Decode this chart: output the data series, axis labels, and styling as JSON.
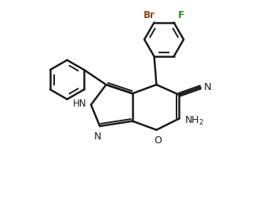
{
  "bg_color": "#ffffff",
  "bond_color": "#1a1a1a",
  "br_color": "#8B4513",
  "f_color": "#228B22",
  "lw": 1.8,
  "lw2": 1.4,
  "fig_width": 3.25,
  "fig_height": 2.58,
  "dpi": 100,
  "xlim": [
    0,
    10
  ],
  "ylim": [
    0,
    8
  ]
}
